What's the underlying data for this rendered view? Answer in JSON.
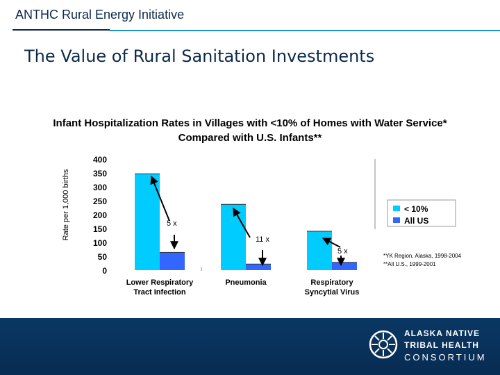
{
  "header": {
    "title": "ANTHC Rural Energy Initiative"
  },
  "slide": {
    "title": "The Value of Rural Sanitation Investments"
  },
  "chart_data": {
    "type": "bar",
    "title_line1": "Infant Hospitalization Rates in Villages with <10% of Homes with Water Service*",
    "title_line2": "Compared with U.S. Infants**",
    "ylabel": "Rate per 1,000 births",
    "ylim": [
      0,
      400
    ],
    "yticks": [
      "0",
      "50",
      "100",
      "150",
      "200",
      "250",
      "300",
      "350",
      "400"
    ],
    "categories": [
      [
        "Lower Respiratory",
        "Tract Infection"
      ],
      [
        "Pneumonia",
        ""
      ],
      [
        "Respiratory",
        "Syncytial Virus"
      ]
    ],
    "series": [
      {
        "name": "< 10%",
        "color": "#00ccff",
        "values": [
          347,
          237,
          140
        ]
      },
      {
        "name": "All US",
        "color": "#3366ff",
        "values": [
          64,
          22,
          28
        ]
      }
    ],
    "annotations": [
      "5 x",
      "11 x",
      "5 x"
    ],
    "legend_position": "right",
    "footnotes": [
      "*YK Region, Alaska, 1998-2004",
      "**All U.S., 1999-2001"
    ]
  },
  "footer": {
    "logo_line1": "ALASKA NATIVE",
    "logo_line2": "TRIBAL HEALTH",
    "logo_line3": "CONSORTIUM"
  }
}
